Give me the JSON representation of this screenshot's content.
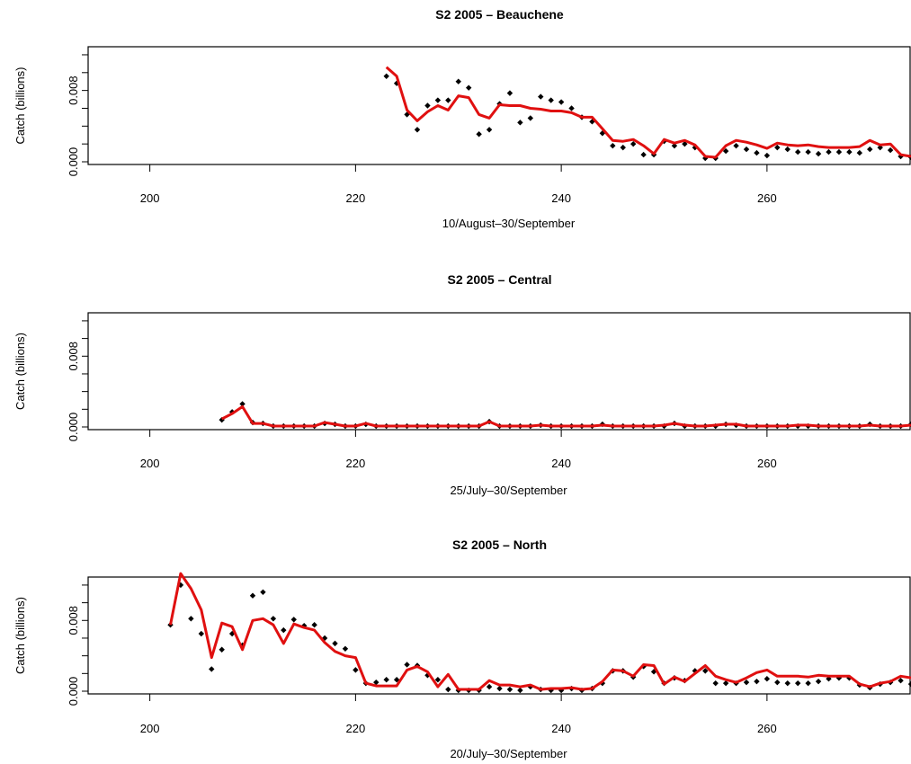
{
  "chart_data": [
    {
      "type": "line",
      "title": "S2 2005 – Beauchene",
      "xlabel": "10/August–30/September",
      "ylabel": "Catch (billions)",
      "xlim": [
        194,
        274
      ],
      "ylim": [
        0,
        0.0125
      ],
      "xticks": [
        "200",
        "220",
        "240",
        "260"
      ],
      "yticks": [
        "0.000",
        "0.008"
      ],
      "grid": false,
      "series": [
        {
          "style": "points",
          "x": [
            223,
            224,
            225,
            226,
            227,
            228,
            229,
            230,
            231,
            232,
            233,
            234,
            235,
            236,
            237,
            238,
            239,
            240,
            241,
            242,
            243,
            244,
            245,
            246,
            247,
            248,
            249,
            250,
            251,
            252,
            253,
            254,
            255,
            256,
            257,
            258,
            259,
            260,
            261,
            262,
            263,
            264,
            265,
            266,
            267,
            268,
            269,
            270,
            271,
            272,
            273,
            274
          ],
          "y": [
            0.0096,
            0.0088,
            0.0053,
            0.0036,
            0.0063,
            0.0069,
            0.0069,
            0.009,
            0.0083,
            0.0031,
            0.0036,
            0.0065,
            0.0077,
            0.0044,
            0.0049,
            0.0073,
            0.0069,
            0.0067,
            0.006,
            0.005,
            0.0045,
            0.0032,
            0.0018,
            0.0016,
            0.002,
            0.0008,
            0.0008,
            0.0023,
            0.0018,
            0.002,
            0.0016,
            0.0004,
            0.0004,
            0.0012,
            0.0018,
            0.0014,
            0.001,
            0.0007,
            0.0016,
            0.0014,
            0.0011,
            0.0011,
            0.0009,
            0.0011,
            0.0011,
            0.0011,
            0.001,
            0.0014,
            0.0016,
            0.0013,
            0.0006,
            0.0005
          ]
        },
        {
          "style": "line",
          "color": "#e01010",
          "x": [
            223,
            224,
            225,
            226,
            227,
            228,
            229,
            230,
            231,
            232,
            233,
            234,
            235,
            236,
            237,
            238,
            239,
            240,
            241,
            242,
            243,
            244,
            245,
            246,
            247,
            248,
            249,
            250,
            251,
            252,
            253,
            254,
            255,
            256,
            257,
            258,
            259,
            260,
            261,
            262,
            263,
            264,
            265,
            266,
            267,
            268,
            269,
            270,
            271,
            272,
            273,
            274
          ],
          "y": [
            0.0106,
            0.0096,
            0.0058,
            0.0046,
            0.0056,
            0.0063,
            0.0058,
            0.0074,
            0.0072,
            0.0053,
            0.0049,
            0.0064,
            0.0063,
            0.0063,
            0.006,
            0.0059,
            0.0057,
            0.0057,
            0.0055,
            0.005,
            0.005,
            0.0037,
            0.0024,
            0.0023,
            0.0025,
            0.0018,
            0.0009,
            0.0025,
            0.0021,
            0.0024,
            0.0019,
            0.0006,
            0.0005,
            0.0018,
            0.0024,
            0.0022,
            0.0019,
            0.0015,
            0.0021,
            0.0019,
            0.0018,
            0.0019,
            0.0017,
            0.0016,
            0.0016,
            0.0016,
            0.0017,
            0.0024,
            0.0019,
            0.002,
            0.0008,
            0.0006
          ]
        }
      ]
    },
    {
      "type": "line",
      "title": "S2 2005 – Central",
      "xlabel": "25/July–30/September",
      "ylabel": "Catch (billions)",
      "xlim": [
        194,
        274
      ],
      "ylim": [
        0,
        0.0125
      ],
      "xticks": [
        "200",
        "220",
        "240",
        "260"
      ],
      "yticks": [
        "0.000",
        "0.008"
      ],
      "grid": false,
      "series": [
        {
          "style": "points",
          "x": [
            207,
            208,
            209,
            210,
            211,
            212,
            213,
            214,
            215,
            216,
            217,
            218,
            219,
            220,
            221,
            222,
            223,
            224,
            225,
            226,
            227,
            228,
            229,
            230,
            231,
            232,
            233,
            234,
            235,
            236,
            237,
            238,
            239,
            240,
            241,
            242,
            243,
            244,
            245,
            246,
            247,
            248,
            249,
            250,
            251,
            252,
            253,
            254,
            255,
            256,
            257,
            258,
            259,
            260,
            261,
            262,
            263,
            264,
            265,
            266,
            267,
            268,
            269,
            270,
            271,
            272,
            273,
            274
          ],
          "y": [
            0.0008,
            0.0017,
            0.0026,
            0.0005,
            0.0004,
            0.0001,
            0.0001,
            0.0001,
            0.0001,
            0.0001,
            0.0004,
            0.0003,
            0.0001,
            0.0001,
            0.0003,
            0.0001,
            0.0001,
            0.0001,
            0.0001,
            0.0001,
            0.0001,
            0.0001,
            0.0001,
            0.0001,
            0.0001,
            0.0001,
            0.0006,
            0.0001,
            0.0001,
            0.0001,
            0.0001,
            0.0002,
            0.0001,
            0.0001,
            0.0001,
            0.0001,
            0.0001,
            0.0003,
            0.0001,
            0.0001,
            0.0001,
            0.0001,
            0.0001,
            0.0001,
            0.0004,
            0.0001,
            0.0001,
            0.0001,
            0.0001,
            0.0003,
            0.0002,
            0.0001,
            0.0001,
            0.0001,
            0.0001,
            0.0001,
            0.0001,
            0.0001,
            0.0001,
            0.0001,
            0.0001,
            0.0001,
            0.0001,
            0.0003,
            0.0001,
            0.0001,
            0.0001,
            0.0003
          ]
        },
        {
          "style": "line",
          "color": "#e01010",
          "x": [
            207,
            208,
            209,
            210,
            211,
            212,
            213,
            214,
            215,
            216,
            217,
            218,
            219,
            220,
            221,
            222,
            223,
            224,
            225,
            226,
            227,
            228,
            229,
            230,
            231,
            232,
            233,
            234,
            235,
            236,
            237,
            238,
            239,
            240,
            241,
            242,
            243,
            244,
            245,
            246,
            247,
            248,
            249,
            250,
            251,
            252,
            253,
            254,
            255,
            256,
            257,
            258,
            259,
            260,
            261,
            262,
            263,
            264,
            265,
            266,
            267,
            268,
            269,
            270,
            271,
            272,
            273,
            274
          ],
          "y": [
            0.0009,
            0.0015,
            0.0023,
            0.0004,
            0.0004,
            0.0001,
            0.0001,
            0.0001,
            0.0001,
            0.0001,
            0.0005,
            0.0003,
            0.0001,
            0.0001,
            0.0004,
            0.0001,
            0.0001,
            0.0001,
            0.0001,
            0.0001,
            0.0001,
            0.0001,
            0.0001,
            0.0001,
            0.0001,
            0.0001,
            0.0006,
            0.0001,
            0.0001,
            0.0001,
            0.0001,
            0.0002,
            0.0001,
            0.0001,
            0.0001,
            0.0001,
            0.0001,
            0.0002,
            0.0001,
            0.0001,
            0.0001,
            0.0001,
            0.0001,
            0.0002,
            0.0004,
            0.0002,
            0.0001,
            0.0001,
            0.0002,
            0.0003,
            0.0003,
            0.0001,
            0.0001,
            0.0001,
            0.0001,
            0.0001,
            0.0002,
            0.0002,
            0.0001,
            0.0001,
            0.0001,
            0.0001,
            0.0001,
            0.0002,
            0.0001,
            0.0001,
            0.0001,
            0.0002
          ]
        }
      ]
    },
    {
      "type": "line",
      "title": "S2 2005 – North",
      "xlabel": "20/July–30/September",
      "ylabel": "Catch (billions)",
      "xlim": [
        194,
        274
      ],
      "ylim": [
        0,
        0.0125
      ],
      "xticks": [
        "200",
        "220",
        "240",
        "260"
      ],
      "yticks": [
        "0.000",
        "0.008"
      ],
      "grid": false,
      "series": [
        {
          "style": "points",
          "x": [
            202,
            203,
            204,
            205,
            206,
            207,
            208,
            209,
            210,
            211,
            212,
            213,
            214,
            215,
            216,
            217,
            218,
            219,
            220,
            221,
            222,
            223,
            224,
            225,
            226,
            227,
            228,
            229,
            230,
            231,
            232,
            233,
            234,
            235,
            236,
            237,
            238,
            239,
            240,
            241,
            242,
            243,
            244,
            245,
            246,
            247,
            248,
            249,
            250,
            251,
            252,
            253,
            254,
            255,
            256,
            257,
            258,
            259,
            260,
            261,
            262,
            263,
            264,
            265,
            266,
            267,
            268,
            269,
            270,
            271,
            272,
            273,
            274
          ],
          "y": [
            0.0075,
            0.012,
            0.0082,
            0.0065,
            0.0025,
            0.0047,
            0.0065,
            0.0052,
            0.0108,
            0.0112,
            0.0082,
            0.0069,
            0.0081,
            0.0074,
            0.0075,
            0.006,
            0.0054,
            0.0048,
            0.0024,
            0.0009,
            0.001,
            0.0013,
            0.0013,
            0.003,
            0.0029,
            0.0018,
            0.0013,
            0.0002,
            0.0001,
            0.0001,
            0.0001,
            0.0005,
            0.0003,
            0.0002,
            0.0001,
            0.0005,
            0.0002,
            0.0001,
            0.0001,
            0.0003,
            0.0001,
            0.0003,
            0.0009,
            0.0023,
            0.0023,
            0.0016,
            0.0028,
            0.0022,
            0.0009,
            0.0015,
            0.0012,
            0.0023,
            0.0023,
            0.0009,
            0.0009,
            0.0009,
            0.001,
            0.0011,
            0.0014,
            0.001,
            0.0009,
            0.0009,
            0.0009,
            0.0011,
            0.0014,
            0.0015,
            0.0015,
            0.0007,
            0.0004,
            0.0008,
            0.001,
            0.0012,
            0.0008
          ]
        },
        {
          "style": "line",
          "color": "#e01010",
          "x": [
            202,
            203,
            204,
            205,
            206,
            207,
            208,
            209,
            210,
            211,
            212,
            213,
            214,
            215,
            216,
            217,
            218,
            219,
            220,
            221,
            222,
            223,
            224,
            225,
            226,
            227,
            228,
            229,
            230,
            231,
            232,
            233,
            234,
            235,
            236,
            237,
            238,
            239,
            240,
            241,
            242,
            243,
            244,
            245,
            246,
            247,
            248,
            249,
            250,
            251,
            252,
            253,
            254,
            255,
            256,
            257,
            258,
            259,
            260,
            261,
            262,
            263,
            264,
            265,
            266,
            267,
            268,
            269,
            270,
            271,
            272,
            273,
            274
          ],
          "y": [
            0.0075,
            0.0133,
            0.0116,
            0.0092,
            0.0038,
            0.0077,
            0.0073,
            0.0047,
            0.008,
            0.0082,
            0.0075,
            0.0054,
            0.0076,
            0.0072,
            0.0069,
            0.0055,
            0.0045,
            0.004,
            0.0038,
            0.0009,
            0.0006,
            0.0006,
            0.0006,
            0.0024,
            0.0028,
            0.0022,
            0.0005,
            0.0019,
            0.0002,
            0.0002,
            0.0002,
            0.0012,
            0.0007,
            0.0007,
            0.0005,
            0.0007,
            0.0002,
            0.0003,
            0.0003,
            0.0004,
            0.0002,
            0.0003,
            0.0011,
            0.0024,
            0.0023,
            0.0017,
            0.003,
            0.0029,
            0.0008,
            0.0016,
            0.0011,
            0.002,
            0.0029,
            0.0017,
            0.0013,
            0.001,
            0.0015,
            0.0021,
            0.0024,
            0.0017,
            0.0017,
            0.0017,
            0.0016,
            0.0018,
            0.0017,
            0.0017,
            0.0017,
            0.0008,
            0.0005,
            0.0009,
            0.0011,
            0.0017,
            0.0015
          ]
        }
      ]
    }
  ]
}
